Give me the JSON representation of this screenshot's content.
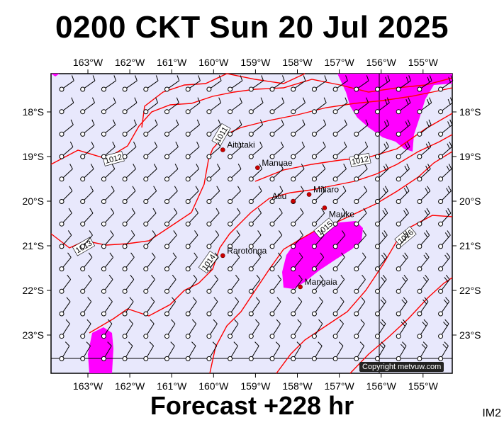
{
  "title": "0200 CKT Sun 20 Jul 2025",
  "footer": "Forecast +228 hr",
  "image_code": "IM2",
  "copyright": "Copyright metvuw.com",
  "axes": {
    "lon_ticks": [
      "163°W",
      "162°W",
      "161°W",
      "160°W",
      "159°W",
      "158°W",
      "157°W",
      "156°W",
      "155°W"
    ],
    "lat_ticks": [
      "18°S",
      "19°S",
      "20°S",
      "21°S",
      "22°S",
      "23°S"
    ]
  },
  "places": [
    {
      "name": "Aitutaki",
      "lon": -159.78,
      "lat": -18.85
    },
    {
      "name": "Manuae",
      "lon": -158.95,
      "lat": -19.25
    },
    {
      "name": "Mitiaro",
      "lon": -157.72,
      "lat": -19.85
    },
    {
      "name": "Atiu",
      "lon": -158.1,
      "lat": -20.0
    },
    {
      "name": "Mauke",
      "lon": -157.35,
      "lat": -20.15
    },
    {
      "name": "Rarotonga",
      "lon": -159.78,
      "lat": -21.22
    },
    {
      "name": "Mangaia",
      "lon": -157.93,
      "lat": -21.92
    }
  ],
  "isobar_labels": [
    "1011",
    "1012",
    "1013",
    "1014",
    "1015",
    "1016"
  ],
  "colors": {
    "ocean": "#e8e8fc",
    "rain": "#ff00ff",
    "isobar": "#ff0000",
    "frame": "#000000"
  }
}
